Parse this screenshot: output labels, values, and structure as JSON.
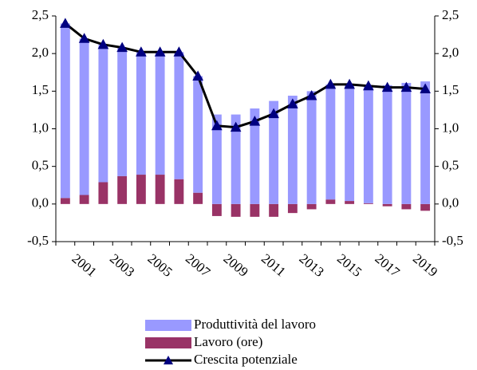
{
  "chart_data": {
    "type": "bar",
    "categories": [
      null,
      "2001",
      null,
      "2003",
      null,
      "2005",
      null,
      "2007",
      null,
      "2009",
      null,
      "2011",
      null,
      "2013",
      null,
      "2015",
      null,
      "2017",
      null,
      "2019"
    ],
    "series": [
      {
        "name": "Produttività del lavoro",
        "type": "bar",
        "color": "#9999ff",
        "values": [
          2.32,
          2.08,
          1.83,
          1.71,
          1.63,
          1.63,
          1.69,
          1.55,
          1.19,
          1.19,
          1.27,
          1.37,
          1.44,
          1.5,
          1.53,
          1.55,
          1.56,
          1.58,
          1.61,
          1.63
        ]
      },
      {
        "name": "Lavoro (ore)",
        "type": "bar",
        "color": "#993366",
        "values": [
          0.08,
          0.12,
          0.29,
          0.37,
          0.39,
          0.39,
          0.33,
          0.15,
          -0.16,
          -0.17,
          -0.17,
          -0.17,
          -0.12,
          -0.07,
          0.06,
          0.04,
          0.01,
          -0.03,
          -0.07,
          -0.09
        ]
      },
      {
        "name": "Crescita potenziale",
        "type": "line",
        "color": "#000000",
        "marker_color": "#000080",
        "values": [
          2.4,
          2.2,
          2.12,
          2.08,
          2.02,
          2.02,
          2.02,
          1.7,
          1.04,
          1.02,
          1.1,
          1.2,
          1.33,
          1.44,
          1.59,
          1.59,
          1.57,
          1.55,
          1.55,
          1.53
        ]
      }
    ],
    "ylim": [
      -0.5,
      2.5
    ],
    "yticks": [
      {
        "value": -0.5,
        "label": "-0,5"
      },
      {
        "value": 0,
        "label": "0,0"
      },
      {
        "value": 0.5,
        "label": "0,5"
      },
      {
        "value": 1,
        "label": "1,0"
      },
      {
        "value": 1.5,
        "label": "1,5"
      },
      {
        "value": 2,
        "label": "2,0"
      },
      {
        "value": 2.5,
        "label": "2,5"
      }
    ],
    "y2lim": [
      -0.5,
      2.5
    ],
    "y2ticks": [
      {
        "value": -0.5,
        "label": "-0,5"
      },
      {
        "value": 0,
        "label": "0,0"
      },
      {
        "value": 0.5,
        "label": "0,5"
      },
      {
        "value": 1,
        "label": "1,0"
      },
      {
        "value": 1.5,
        "label": "1,5"
      },
      {
        "value": 2,
        "label": "2,0"
      },
      {
        "value": 2.5,
        "label": "2,5"
      }
    ],
    "grid": false,
    "legend": "bottom"
  }
}
